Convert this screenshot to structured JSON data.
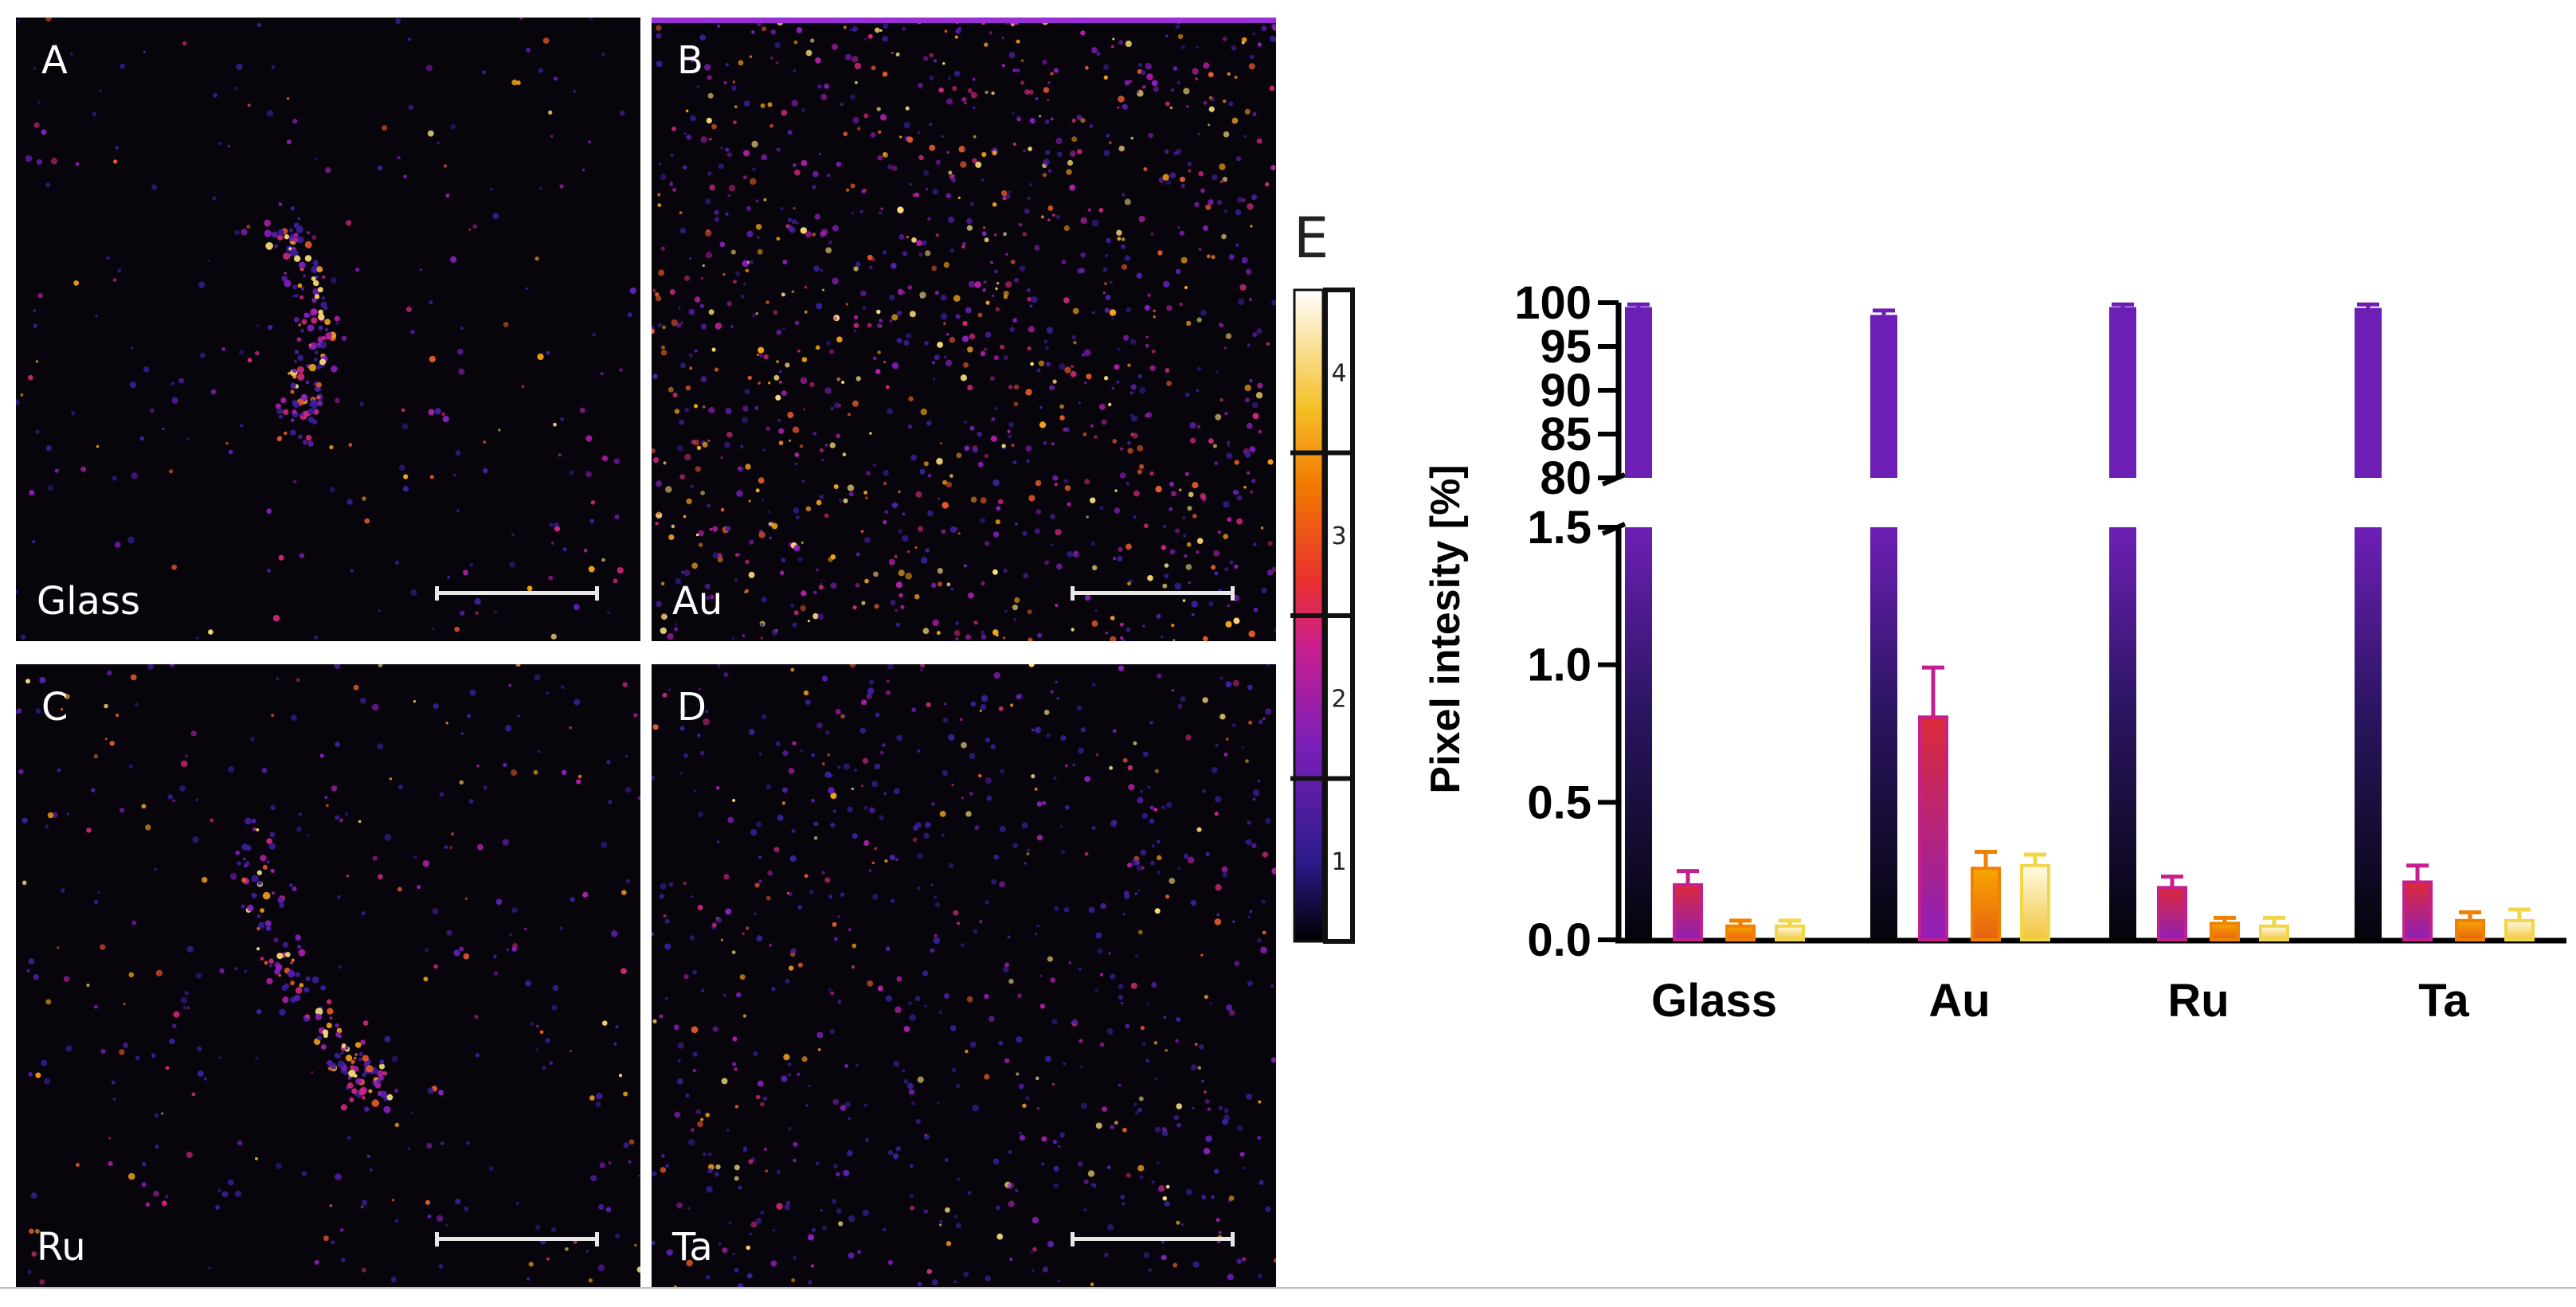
{
  "panels": [
    {
      "id": "A",
      "material": "Glass"
    },
    {
      "id": "B",
      "material": "Au"
    },
    {
      "id": "C",
      "material": "Ru"
    },
    {
      "id": "D",
      "material": "Ta"
    }
  ],
  "colorbar": {
    "levels": [
      "1",
      "2",
      "3",
      "4"
    ]
  },
  "chart_data": {
    "type": "bar",
    "panel_label": "E",
    "title": "",
    "ylabel": "Pixel intesity [%]",
    "xlabel": "",
    "categories": [
      "Glass",
      "Au",
      "Ru",
      "Ta"
    ],
    "series": [
      {
        "name": "1",
        "color": "#6d1fb5",
        "values": [
          99.5,
          98.6,
          99.5,
          99.4
        ],
        "errors": [
          0.3,
          0.5,
          0.3,
          0.4
        ]
      },
      {
        "name": "2",
        "color": "#c51f8e",
        "values": [
          0.2,
          0.81,
          0.19,
          0.21
        ],
        "errors": [
          0.05,
          0.18,
          0.04,
          0.06
        ]
      },
      {
        "name": "3",
        "color": "#f08000",
        "values": [
          0.05,
          0.26,
          0.06,
          0.07
        ],
        "errors": [
          0.02,
          0.06,
          0.02,
          0.03
        ]
      },
      {
        "name": "4",
        "color": "#f2d64a",
        "values": [
          0.05,
          0.27,
          0.05,
          0.07
        ],
        "errors": [
          0.02,
          0.04,
          0.03,
          0.04
        ]
      }
    ],
    "ylim_lower": [
      0,
      1.5
    ],
    "ylim_upper": [
      80,
      100
    ],
    "yticks_lower": [
      "0.0",
      "0.5",
      "1.0",
      "1.5"
    ],
    "yticks_upper": [
      "80",
      "85",
      "90",
      "95",
      "100"
    ],
    "axis_break": true
  }
}
